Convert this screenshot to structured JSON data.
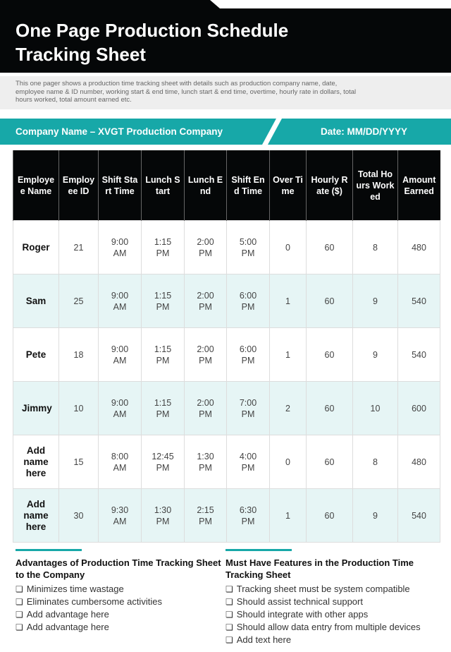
{
  "header": {
    "title": "One Page Production Schedule Tracking Sheet",
    "description": "This one pager shows a production time tracking sheet with details such as production company name, date, employee name & ID number, working start & end time, lunch start & end time, overtime, hourly rate in dollars, total hours worked, total amount earned etc."
  },
  "banner": {
    "company": "Company Name – XVGT Production Company",
    "date": "Date: MM/DD/YYYY"
  },
  "table": {
    "columns": [
      "Employee Name",
      "Employee ID",
      "Shift Start Time",
      "Lunch Start",
      "Lunch End",
      "Shift End Time",
      "Over Time",
      "Hourly Rate ($)",
      "Total Hours Worked",
      "Amount Earned"
    ],
    "rows": [
      [
        "Roger",
        21,
        "9:00 AM",
        "1:15 PM",
        "2:00 PM",
        "5:00 PM",
        0,
        60,
        8,
        480
      ],
      [
        "Sam",
        25,
        "9:00 AM",
        "1:15 PM",
        "2:00 PM",
        "6:00 PM",
        1,
        60,
        9,
        540
      ],
      [
        "Pete",
        18,
        "9:00 AM",
        "1:15 PM",
        "2:00 PM",
        "6:00 PM",
        1,
        60,
        9,
        540
      ],
      [
        "Jimmy",
        10,
        "9:00 AM",
        "1:15 PM",
        "2:00 PM",
        "7:00 PM",
        2,
        60,
        10,
        600
      ],
      [
        "Add name here",
        15,
        "8:00 AM",
        "12:45 PM",
        "1:30 PM",
        "4:00 PM",
        0,
        60,
        8,
        480
      ],
      [
        "Add name here",
        30,
        "9:30 AM",
        "1:30 PM",
        "2:15 PM",
        "6:30 PM",
        1,
        60,
        9,
        540
      ]
    ]
  },
  "sections": [
    {
      "title": "Advantages of Production Time Tracking Sheet to the Company",
      "items": [
        "Minimizes time wastage",
        "Eliminates cumbersome activities",
        "Add advantage here",
        "Add advantage here"
      ]
    },
    {
      "title": "Must Have Features in the Production Time Tracking Sheet",
      "items": [
        "Tracking sheet must be system compatible",
        "Should assist technical support",
        "Should integrate with other apps",
        "Should allow data entry from multiple devices",
        "Add text here"
      ]
    }
  ]
}
